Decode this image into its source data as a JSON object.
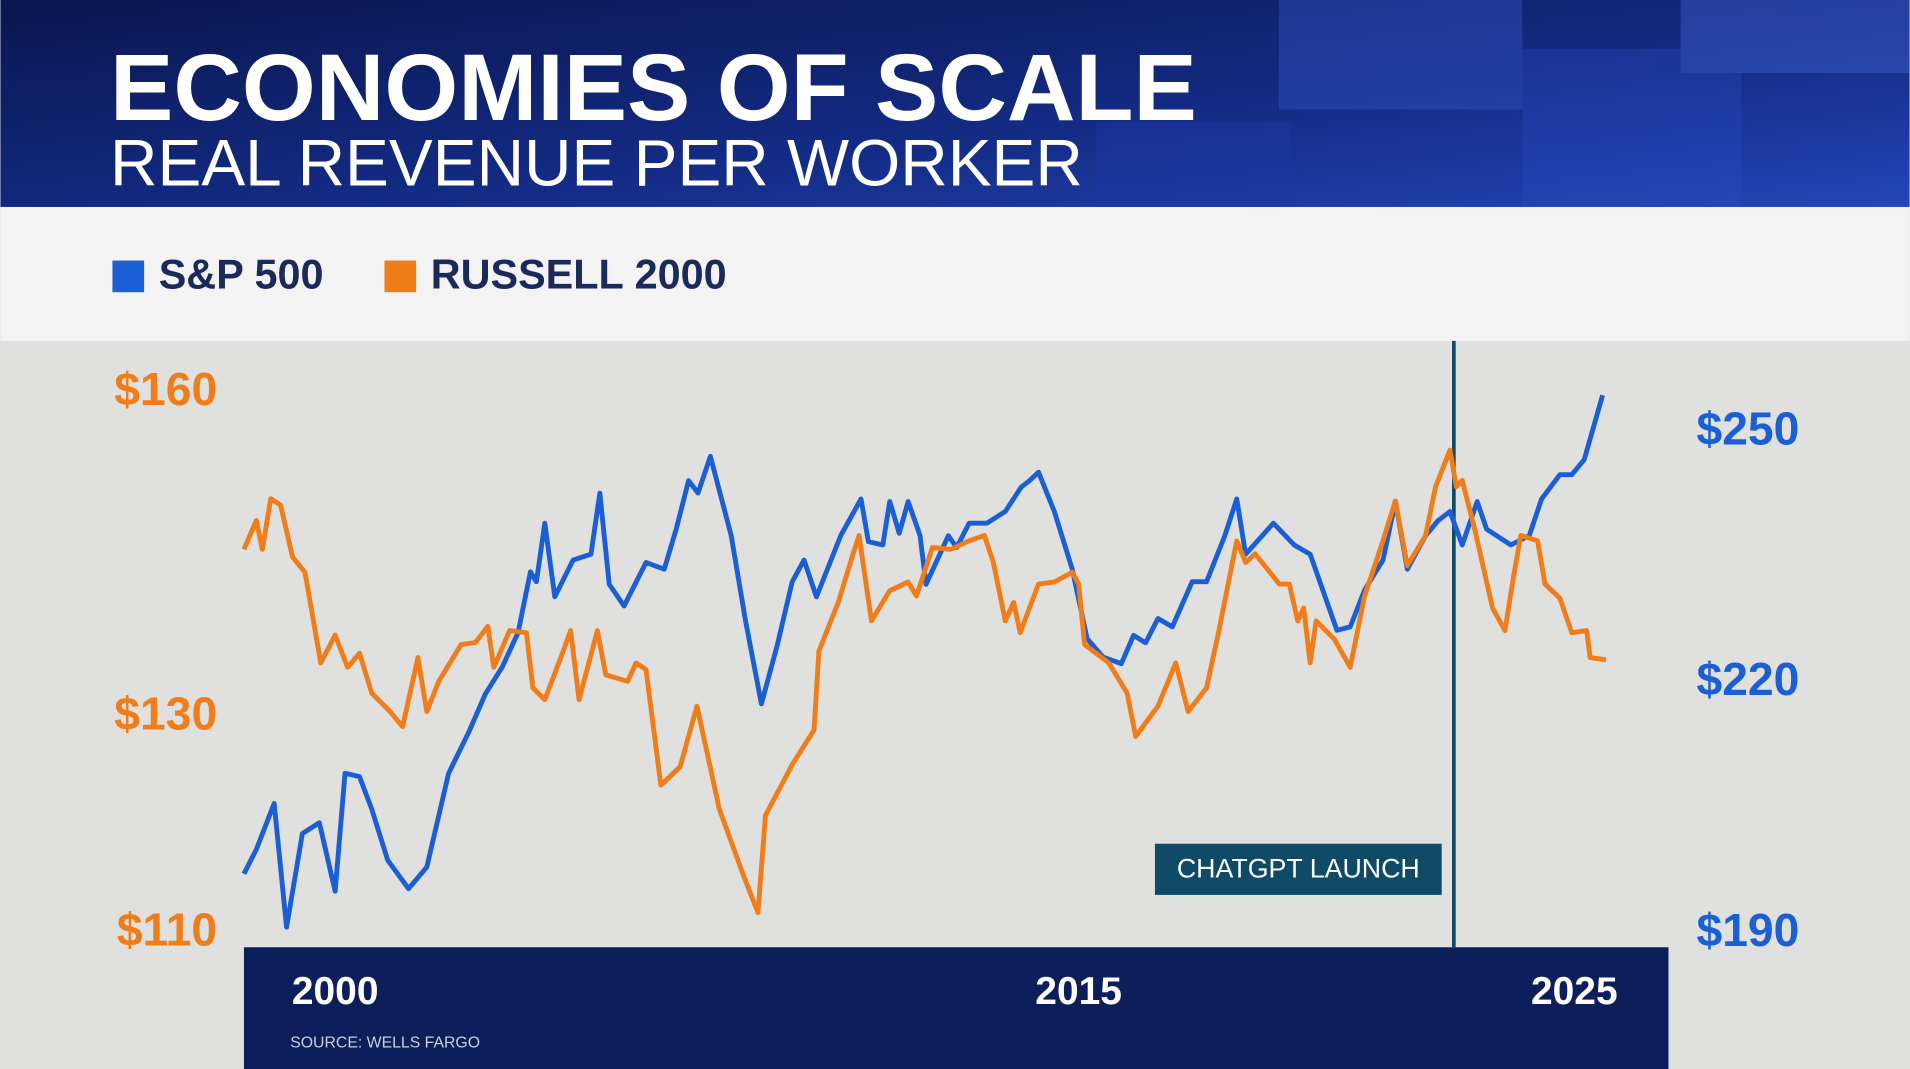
{
  "chart_data": {
    "type": "line",
    "title": "ECONOMIES OF SCALE",
    "subtitle": "REAL REVENUE PER WORKER",
    "source": "SOURCE: WELLS FARGO",
    "legend": "top-left",
    "annotation": {
      "text": "CHATGPT LAUNCH",
      "x": 2022.57
    },
    "xlim": [
      1998.16,
      2026.9
    ],
    "xticks": [
      2000,
      2015,
      2025
    ],
    "ylim": [
      108.7,
      164.8
    ],
    "yticks": [
      {
        "value": 110,
        "label": "$110"
      },
      {
        "value": 130,
        "label": "$130"
      },
      {
        "value": 160,
        "label": "$160"
      }
    ],
    "y2lim": [
      188.4,
      260.9
    ],
    "y2ticks": [
      {
        "value": 190,
        "label": "$190"
      },
      {
        "value": 220,
        "label": "$220"
      },
      {
        "value": 250,
        "label": "$250"
      }
    ],
    "series": [
      {
        "name": "S&P 500",
        "color": "#1a5fd6",
        "axis": "y2",
        "x": [
          1998.16,
          1998.41,
          1998.77,
          1999.02,
          1999.34,
          1999.68,
          2000.0,
          2000.2,
          2000.49,
          2000.74,
          2001.06,
          2001.48,
          2001.85,
          2002.29,
          2002.71,
          2003.03,
          2003.37,
          2003.69,
          2003.94,
          2004.06,
          2004.23,
          2004.43,
          2004.8,
          2005.16,
          2005.34,
          2005.53,
          2005.83,
          2006.27,
          2006.64,
          2006.88,
          2007.13,
          2007.32,
          2007.57,
          2007.99,
          2008.28,
          2008.6,
          2008.92,
          2009.22,
          2009.46,
          2009.71,
          2010.2,
          2010.61,
          2010.76,
          2011.05,
          2011.19,
          2011.38,
          2011.56,
          2011.8,
          2011.92,
          2012.37,
          2012.54,
          2012.79,
          2013.15,
          2013.52,
          2013.84,
          2014.01,
          2014.19,
          2014.51,
          2014.87,
          2015.17,
          2015.49,
          2015.86,
          2016.11,
          2016.35,
          2016.6,
          2016.89,
          2017.29,
          2017.58,
          2017.95,
          2018.19,
          2018.37,
          2018.93,
          2019.35,
          2019.67,
          2020.21,
          2020.48,
          2020.77,
          2021.14,
          2021.39,
          2021.63,
          2022.0,
          2022.25,
          2022.49,
          2022.74,
          2023.04,
          2023.23,
          2023.72,
          2024.09,
          2024.34,
          2024.71,
          2024.95,
          2025.2,
          2025.57
        ],
        "values": [
          197.2,
          200.1,
          205.6,
          190.8,
          202.0,
          203.3,
          195.1,
          209.2,
          208.8,
          204.9,
          198.8,
          195.4,
          198.0,
          209.2,
          214.3,
          218.7,
          221.9,
          226.0,
          233.3,
          232.1,
          239.1,
          230.3,
          234.7,
          235.4,
          242.7,
          231.8,
          229.2,
          234.4,
          233.6,
          238.4,
          244.2,
          242.7,
          247.1,
          237.6,
          227.4,
          217.5,
          224.5,
          232.1,
          234.7,
          230.3,
          237.6,
          242.0,
          236.9,
          236.5,
          241.7,
          237.9,
          241.7,
          237.6,
          231.8,
          237.6,
          236.2,
          239.1,
          239.1,
          240.5,
          243.4,
          244.2,
          245.2,
          240.5,
          233.6,
          225.3,
          223.1,
          222.3,
          225.7,
          224.8,
          227.7,
          226.7,
          232.1,
          232.1,
          237.6,
          242.0,
          235.4,
          239.1,
          236.5,
          235.4,
          226.3,
          226.7,
          231.1,
          234.7,
          241.7,
          233.6,
          237.6,
          239.4,
          240.5,
          236.5,
          241.7,
          238.4,
          236.5,
          237.6,
          242.0,
          244.9,
          244.9,
          246.7,
          254.4
        ]
      },
      {
        "name": "RUSSELL 2000",
        "color": "#f07d1a",
        "axis": "y",
        "x": [
          1998.16,
          1998.41,
          1998.53,
          1998.7,
          1998.9,
          1999.14,
          1999.39,
          1999.71,
          2000.0,
          2000.25,
          2000.49,
          2000.74,
          2001.11,
          2001.36,
          2001.67,
          2001.85,
          2002.09,
          2002.54,
          2002.83,
          2003.08,
          2003.2,
          2003.52,
          2003.86,
          2003.99,
          2004.23,
          2004.6,
          2004.75,
          2004.92,
          2005.29,
          2005.46,
          2005.9,
          2006.07,
          2006.27,
          2006.57,
          2006.96,
          2007.3,
          2007.75,
          2008.24,
          2008.53,
          2008.68,
          2009.22,
          2009.66,
          2009.76,
          2010.15,
          2010.45,
          2010.57,
          2010.82,
          2011.19,
          2011.56,
          2011.73,
          2012.05,
          2012.42,
          2012.79,
          2013.1,
          2013.28,
          2013.52,
          2013.69,
          2013.82,
          2014.19,
          2014.51,
          2014.87,
          2015.0,
          2015.12,
          2015.61,
          2015.98,
          2016.15,
          2016.6,
          2016.96,
          2017.21,
          2017.58,
          2017.82,
          2018.19,
          2018.37,
          2018.56,
          2019.05,
          2019.25,
          2019.42,
          2019.54,
          2019.67,
          2019.79,
          2020.16,
          2020.48,
          2020.77,
          2021.14,
          2021.39,
          2021.63,
          2022.0,
          2022.2,
          2022.49,
          2022.62,
          2022.74,
          2022.99,
          2023.35,
          2023.6,
          2023.77,
          2023.92,
          2024.26,
          2024.41,
          2024.71,
          2024.95,
          2025.25,
          2025.32,
          2025.64
        ],
        "values": [
          145.5,
          148.2,
          145.5,
          150.2,
          149.6,
          144.8,
          143.4,
          135.0,
          137.6,
          134.6,
          135.9,
          132.2,
          130.5,
          129.1,
          135.5,
          130.5,
          133.3,
          136.7,
          136.9,
          138.4,
          134.6,
          138.0,
          137.8,
          132.7,
          131.6,
          136.1,
          138.0,
          131.6,
          138.0,
          133.9,
          133.3,
          135.0,
          134.4,
          123.7,
          125.4,
          131.0,
          121.5,
          115.3,
          111.9,
          120.9,
          125.6,
          128.8,
          136.1,
          140.6,
          145.1,
          146.8,
          138.9,
          141.7,
          142.5,
          141.2,
          145.7,
          145.5,
          146.3,
          146.8,
          144.3,
          138.9,
          140.6,
          137.8,
          142.3,
          142.5,
          143.4,
          142.3,
          136.7,
          135.0,
          132.2,
          128.2,
          131.0,
          135.0,
          130.5,
          132.7,
          137.8,
          146.3,
          144.3,
          145.1,
          142.3,
          142.3,
          138.9,
          140.1,
          135.0,
          138.9,
          137.2,
          134.6,
          141.2,
          146.3,
          150.0,
          144.0,
          146.8,
          151.3,
          154.7,
          151.3,
          151.9,
          147.4,
          140.1,
          138.0,
          142.9,
          146.8,
          146.3,
          142.3,
          141.0,
          137.8,
          138.0,
          135.5,
          135.3
        ]
      }
    ]
  }
}
